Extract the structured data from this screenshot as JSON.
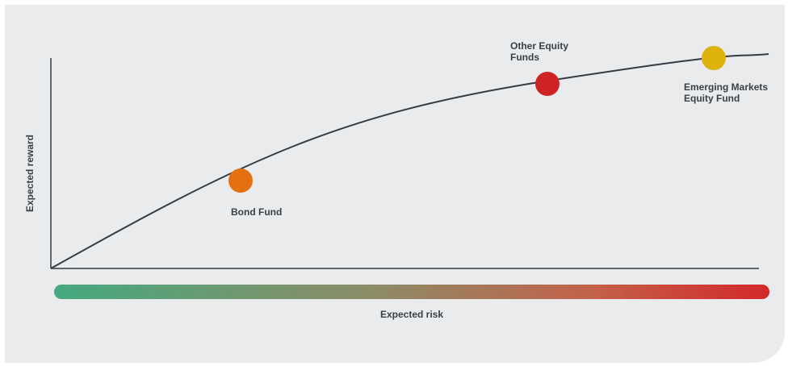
{
  "diagram": {
    "y_axis_label": "Expected reward",
    "x_axis_label": "Expected risk",
    "funds": [
      {
        "label": "Bond Fund",
        "color": "#e5700f"
      },
      {
        "label": "Other Equity Funds",
        "color": "#cf2227"
      },
      {
        "label": "Emerging Markets Equity Fund",
        "color": "#dcb20b"
      }
    ],
    "curve_color": "#333b43",
    "risk_gradient": [
      "#45a97f",
      "#8d8b66",
      "#c3624a",
      "#d3282a"
    ]
  }
}
